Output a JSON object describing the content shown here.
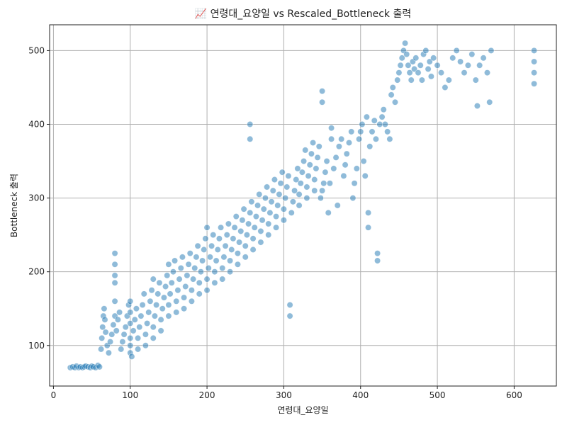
{
  "chart_data": {
    "type": "scatter",
    "title": "📈 연령대_요양일 vs Rescaled_Bottleneck 출력",
    "xlabel": "연령대_요양일",
    "ylabel": "Bottleneck 출력",
    "xlim": [
      -5,
      655
    ],
    "ylim": [
      45,
      535
    ],
    "xticks": [
      0,
      100,
      200,
      300,
      400,
      500,
      600
    ],
    "yticks": [
      100,
      200,
      300,
      400,
      500
    ],
    "grid": true,
    "legend": "none",
    "point_color": "#1f77b4",
    "point_alpha": 0.5,
    "series": [
      {
        "points": [
          [
            22,
            70
          ],
          [
            25,
            71
          ],
          [
            28,
            70
          ],
          [
            30,
            72
          ],
          [
            33,
            70
          ],
          [
            35,
            71
          ],
          [
            38,
            70
          ],
          [
            40,
            71
          ],
          [
            42,
            72
          ],
          [
            45,
            71
          ],
          [
            48,
            70
          ],
          [
            50,
            72
          ],
          [
            52,
            71
          ],
          [
            55,
            70
          ],
          [
            58,
            73
          ],
          [
            60,
            71
          ],
          [
            62,
            95
          ],
          [
            63,
            110
          ],
          [
            64,
            125
          ],
          [
            65,
            140
          ],
          [
            66,
            150
          ],
          [
            67,
            135
          ],
          [
            68,
            118
          ],
          [
            70,
            100
          ],
          [
            72,
            90
          ],
          [
            74,
            105
          ],
          [
            76,
            115
          ],
          [
            78,
            128
          ],
          [
            80,
            140
          ],
          [
            80,
            160
          ],
          [
            80,
            185
          ],
          [
            80,
            195
          ],
          [
            80,
            210
          ],
          [
            80,
            225
          ],
          [
            82,
            120
          ],
          [
            84,
            135
          ],
          [
            86,
            145
          ],
          [
            88,
            95
          ],
          [
            90,
            105
          ],
          [
            92,
            115
          ],
          [
            94,
            125
          ],
          [
            96,
            140
          ],
          [
            98,
            155
          ],
          [
            100,
            90
          ],
          [
            100,
            100
          ],
          [
            100,
            110
          ],
          [
            100,
            130
          ],
          [
            100,
            145
          ],
          [
            100,
            160
          ],
          [
            102,
            85
          ],
          [
            104,
            120
          ],
          [
            106,
            135
          ],
          [
            108,
            150
          ],
          [
            110,
            95
          ],
          [
            110,
            110
          ],
          [
            112,
            125
          ],
          [
            114,
            140
          ],
          [
            116,
            155
          ],
          [
            118,
            170
          ],
          [
            120,
            100
          ],
          [
            120,
            115
          ],
          [
            122,
            130
          ],
          [
            124,
            145
          ],
          [
            126,
            160
          ],
          [
            128,
            175
          ],
          [
            130,
            110
          ],
          [
            130,
            125
          ],
          [
            130,
            190
          ],
          [
            132,
            140
          ],
          [
            134,
            155
          ],
          [
            136,
            170
          ],
          [
            138,
            185
          ],
          [
            140,
            120
          ],
          [
            140,
            135
          ],
          [
            142,
            150
          ],
          [
            144,
            165
          ],
          [
            146,
            180
          ],
          [
            148,
            195
          ],
          [
            150,
            140
          ],
          [
            150,
            155
          ],
          [
            150,
            210
          ],
          [
            152,
            170
          ],
          [
            154,
            185
          ],
          [
            156,
            200
          ],
          [
            158,
            215
          ],
          [
            160,
            145
          ],
          [
            160,
            160
          ],
          [
            162,
            175
          ],
          [
            164,
            190
          ],
          [
            166,
            205
          ],
          [
            168,
            220
          ],
          [
            170,
            150
          ],
          [
            170,
            165
          ],
          [
            172,
            180
          ],
          [
            174,
            195
          ],
          [
            176,
            210
          ],
          [
            178,
            225
          ],
          [
            180,
            160
          ],
          [
            180,
            175
          ],
          [
            182,
            190
          ],
          [
            184,
            205
          ],
          [
            186,
            220
          ],
          [
            188,
            235
          ],
          [
            190,
            170
          ],
          [
            190,
            185
          ],
          [
            192,
            200
          ],
          [
            194,
            215
          ],
          [
            196,
            230
          ],
          [
            198,
            245
          ],
          [
            200,
            175
          ],
          [
            200,
            190
          ],
          [
            200,
            260
          ],
          [
            202,
            205
          ],
          [
            204,
            220
          ],
          [
            206,
            235
          ],
          [
            208,
            250
          ],
          [
            210,
            185
          ],
          [
            210,
            200
          ],
          [
            212,
            215
          ],
          [
            214,
            230
          ],
          [
            216,
            245
          ],
          [
            218,
            260
          ],
          [
            220,
            190
          ],
          [
            220,
            205
          ],
          [
            222,
            220
          ],
          [
            224,
            235
          ],
          [
            226,
            250
          ],
          [
            228,
            265
          ],
          [
            230,
            200
          ],
          [
            230,
            215
          ],
          [
            232,
            230
          ],
          [
            234,
            245
          ],
          [
            236,
            260
          ],
          [
            238,
            275
          ],
          [
            240,
            210
          ],
          [
            240,
            225
          ],
          [
            242,
            240
          ],
          [
            244,
            255
          ],
          [
            246,
            270
          ],
          [
            248,
            285
          ],
          [
            250,
            220
          ],
          [
            250,
            235
          ],
          [
            252,
            250
          ],
          [
            254,
            265
          ],
          [
            256,
            280
          ],
          [
            256,
            380
          ],
          [
            256,
            400
          ],
          [
            258,
            295
          ],
          [
            260,
            230
          ],
          [
            260,
            245
          ],
          [
            262,
            260
          ],
          [
            264,
            275
          ],
          [
            266,
            290
          ],
          [
            268,
            305
          ],
          [
            270,
            240
          ],
          [
            270,
            255
          ],
          [
            272,
            270
          ],
          [
            274,
            285
          ],
          [
            276,
            300
          ],
          [
            278,
            315
          ],
          [
            280,
            250
          ],
          [
            280,
            265
          ],
          [
            282,
            280
          ],
          [
            284,
            295
          ],
          [
            286,
            310
          ],
          [
            288,
            325
          ],
          [
            290,
            260
          ],
          [
            290,
            275
          ],
          [
            292,
            290
          ],
          [
            294,
            305
          ],
          [
            296,
            320
          ],
          [
            298,
            335
          ],
          [
            300,
            270
          ],
          [
            300,
            285
          ],
          [
            302,
            300
          ],
          [
            304,
            315
          ],
          [
            306,
            330
          ],
          [
            308,
            140
          ],
          [
            308,
            155
          ],
          [
            310,
            280
          ],
          [
            312,
            295
          ],
          [
            314,
            310
          ],
          [
            316,
            325
          ],
          [
            318,
            340
          ],
          [
            320,
            290
          ],
          [
            320,
            305
          ],
          [
            322,
            320
          ],
          [
            324,
            335
          ],
          [
            326,
            350
          ],
          [
            328,
            365
          ],
          [
            330,
            300
          ],
          [
            330,
            315
          ],
          [
            332,
            330
          ],
          [
            334,
            345
          ],
          [
            336,
            360
          ],
          [
            338,
            375
          ],
          [
            340,
            310
          ],
          [
            340,
            325
          ],
          [
            342,
            340
          ],
          [
            344,
            355
          ],
          [
            346,
            370
          ],
          [
            348,
            300
          ],
          [
            350,
            310
          ],
          [
            350,
            430
          ],
          [
            350,
            445
          ],
          [
            352,
            320
          ],
          [
            354,
            335
          ],
          [
            356,
            350
          ],
          [
            358,
            280
          ],
          [
            360,
            320
          ],
          [
            362,
            380
          ],
          [
            362,
            395
          ],
          [
            365,
            340
          ],
          [
            368,
            355
          ],
          [
            370,
            290
          ],
          [
            372,
            370
          ],
          [
            375,
            380
          ],
          [
            378,
            330
          ],
          [
            380,
            345
          ],
          [
            382,
            360
          ],
          [
            385,
            375
          ],
          [
            388,
            390
          ],
          [
            390,
            300
          ],
          [
            392,
            320
          ],
          [
            395,
            340
          ],
          [
            398,
            380
          ],
          [
            400,
            390
          ],
          [
            402,
            400
          ],
          [
            404,
            350
          ],
          [
            406,
            330
          ],
          [
            408,
            410
          ],
          [
            410,
            280
          ],
          [
            410,
            260
          ],
          [
            412,
            370
          ],
          [
            415,
            390
          ],
          [
            418,
            405
          ],
          [
            420,
            380
          ],
          [
            422,
            225
          ],
          [
            422,
            215
          ],
          [
            425,
            400
          ],
          [
            428,
            410
          ],
          [
            430,
            420
          ],
          [
            432,
            400
          ],
          [
            435,
            390
          ],
          [
            438,
            380
          ],
          [
            440,
            440
          ],
          [
            442,
            450
          ],
          [
            445,
            430
          ],
          [
            448,
            460
          ],
          [
            450,
            470
          ],
          [
            452,
            480
          ],
          [
            454,
            490
          ],
          [
            456,
            500
          ],
          [
            458,
            510
          ],
          [
            460,
            495
          ],
          [
            462,
            480
          ],
          [
            464,
            470
          ],
          [
            466,
            460
          ],
          [
            468,
            485
          ],
          [
            470,
            475
          ],
          [
            472,
            490
          ],
          [
            475,
            470
          ],
          [
            478,
            480
          ],
          [
            480,
            460
          ],
          [
            482,
            495
          ],
          [
            485,
            500
          ],
          [
            488,
            475
          ],
          [
            490,
            485
          ],
          [
            492,
            465
          ],
          [
            495,
            490
          ],
          [
            500,
            480
          ],
          [
            505,
            470
          ],
          [
            510,
            450
          ],
          [
            515,
            460
          ],
          [
            520,
            490
          ],
          [
            525,
            500
          ],
          [
            530,
            485
          ],
          [
            535,
            470
          ],
          [
            540,
            480
          ],
          [
            545,
            495
          ],
          [
            550,
            460
          ],
          [
            552,
            425
          ],
          [
            555,
            480
          ],
          [
            560,
            490
          ],
          [
            565,
            470
          ],
          [
            568,
            430
          ],
          [
            570,
            500
          ],
          [
            626,
            455
          ],
          [
            626,
            470
          ],
          [
            626,
            485
          ],
          [
            626,
            500
          ]
        ]
      }
    ]
  }
}
